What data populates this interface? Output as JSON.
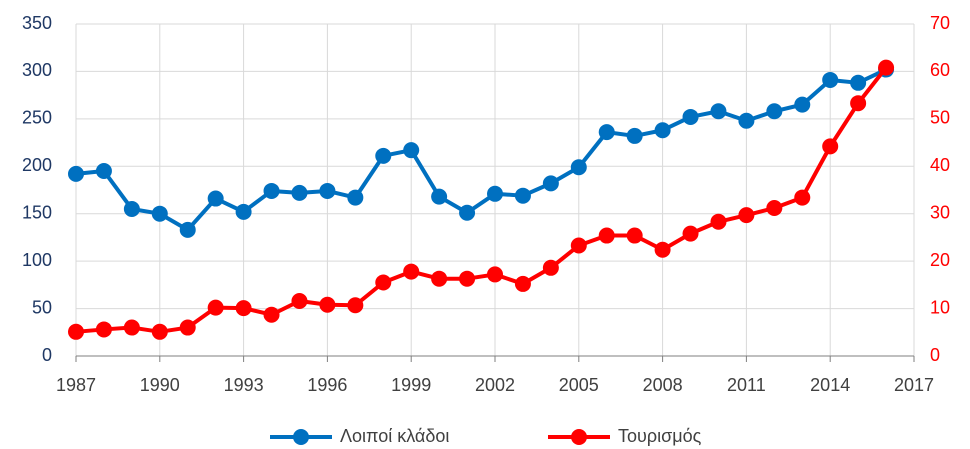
{
  "chart_data": {
    "type": "line",
    "x": [
      1987,
      1988,
      1989,
      1990,
      1991,
      1992,
      1993,
      1994,
      1995,
      1996,
      1997,
      1998,
      1999,
      2000,
      2001,
      2002,
      2003,
      2004,
      2005,
      2006,
      2007,
      2008,
      2009,
      2010,
      2011,
      2012,
      2013,
      2014,
      2015,
      2016
    ],
    "series": [
      {
        "name": "Λοιποί κλάδοι",
        "color": "#0070c0",
        "values": [
          192,
          195,
          155,
          150,
          133,
          166,
          152,
          174,
          172,
          174,
          167,
          211,
          217,
          168,
          151,
          171,
          169,
          182,
          199,
          236,
          232,
          238,
          252,
          258,
          248,
          258,
          265,
          291,
          288,
          302
        ]
      },
      {
        "name": "Τουρισμός",
        "color": "#ff0000",
        "axis": "y2",
        "values": [
          5.1,
          5.6,
          6.0,
          5.1,
          6.0,
          10.2,
          10.1,
          8.7,
          11.6,
          10.8,
          10.7,
          15.5,
          17.8,
          16.3,
          16.3,
          17.2,
          15.2,
          18.6,
          23.3,
          25.4,
          25.4,
          22.4,
          25.8,
          28.3,
          29.7,
          31.2,
          33.4,
          44.2,
          53.3,
          60.8
        ]
      }
    ],
    "xlim": [
      1987,
      2017
    ],
    "xticks": [
      1987,
      1990,
      1993,
      1996,
      1999,
      2002,
      2005,
      2008,
      2011,
      2014,
      2017
    ],
    "ylim": [
      0,
      350
    ],
    "yticks": [
      0,
      50,
      100,
      150,
      200,
      250,
      300,
      350
    ],
    "y2lim": [
      0,
      70
    ],
    "y2ticks": [
      0,
      10,
      20,
      30,
      40,
      50,
      60,
      70
    ],
    "grid": true,
    "legend": "bottom",
    "ycolor": "#1f3864",
    "y2color": "#ff0000"
  }
}
